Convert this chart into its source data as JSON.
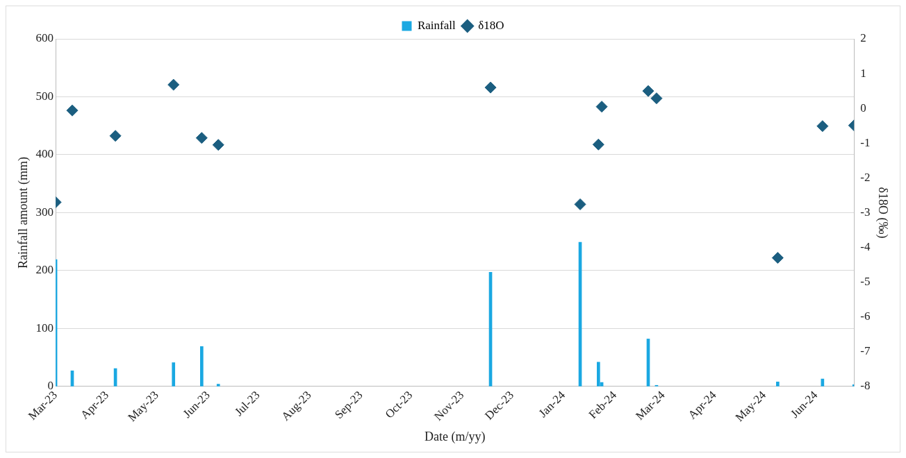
{
  "chart_data": {
    "type": "bar",
    "xlabel": "Date (m/yy)",
    "ylabel": "Rainfall amount (mm)",
    "y2label": "δ18O (‰)",
    "x": [
      "2023-03-01",
      "2023-03-11",
      "2023-04-06",
      "2023-05-11",
      "2023-05-28",
      "2023-06-07",
      "2023-11-18",
      "2024-01-11",
      "2024-01-22",
      "2024-01-24",
      "2024-02-21",
      "2024-02-26",
      "2024-05-09",
      "2024-06-05",
      "2024-06-24"
    ],
    "series": [
      {
        "name": "Rainfall",
        "color": "#1aa8e2",
        "values": [
          219,
          27,
          31,
          41,
          69,
          4,
          197,
          249,
          42,
          7,
          82,
          2,
          8,
          13,
          3
        ]
      },
      {
        "name": "δ18O",
        "type": "scatter",
        "axis": "y2",
        "color": "#1b5e80",
        "marker": "diamond",
        "values": [
          -2.7,
          -0.06,
          -0.79,
          0.68,
          -0.85,
          -1.05,
          0.6,
          -2.76,
          -1.04,
          0.05,
          0.5,
          0.29,
          -4.3,
          -0.51,
          -0.49
        ]
      }
    ],
    "xlim": [
      "2023-03-01",
      "2024-06-24"
    ],
    "xticks": [
      {
        "value": "2023-03-01",
        "label": "Mar-23"
      },
      {
        "value": "2023-04-01",
        "label": "Apr-23"
      },
      {
        "value": "2023-05-01",
        "label": "May-23"
      },
      {
        "value": "2023-06-01",
        "label": "Jun-23"
      },
      {
        "value": "2023-07-01",
        "label": "Jul-23"
      },
      {
        "value": "2023-08-01",
        "label": "Aug-23"
      },
      {
        "value": "2023-09-01",
        "label": "Sep-23"
      },
      {
        "value": "2023-10-01",
        "label": "Oct-23"
      },
      {
        "value": "2023-11-01",
        "label": "Nov-23"
      },
      {
        "value": "2023-12-01",
        "label": "Dec-23"
      },
      {
        "value": "2024-01-01",
        "label": "Jan-24"
      },
      {
        "value": "2024-02-01",
        "label": "Feb-24"
      },
      {
        "value": "2024-03-01",
        "label": "Mar-24"
      },
      {
        "value": "2024-04-01",
        "label": "Apr-24"
      },
      {
        "value": "2024-05-01",
        "label": "May-24"
      },
      {
        "value": "2024-06-01",
        "label": "Jun-24"
      }
    ],
    "ylim": [
      0,
      600
    ],
    "yticks": [
      0,
      100,
      200,
      300,
      400,
      500,
      600
    ],
    "y2lim": [
      -8,
      2
    ],
    "y2ticks": [
      -8,
      -7,
      -6,
      -5,
      -4,
      -3,
      -2,
      -1,
      0,
      1,
      2
    ],
    "grid": "y",
    "legend": "top"
  }
}
